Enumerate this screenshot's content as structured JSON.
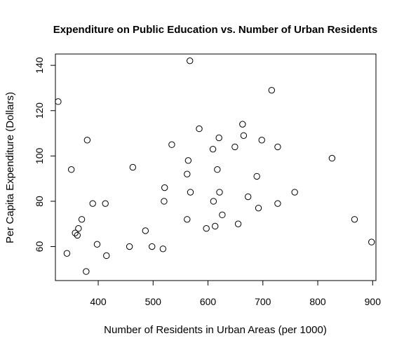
{
  "chart_data": {
    "type": "scatter",
    "title": "Expenditure on Public Education vs. Number of Urban Residents",
    "xlabel": "Number of Residents in Urban Areas (per 1000)",
    "ylabel": "Per Capita Expenditure (Dollars)",
    "xlim": [
      322,
      906
    ],
    "ylim": [
      45,
      145
    ],
    "xticks": [
      400,
      500,
      600,
      700,
      800,
      900
    ],
    "yticks": [
      60,
      80,
      100,
      120,
      140
    ],
    "grid": false,
    "legend": "none",
    "marker": "open-circle",
    "colors": {
      "point": "#000000",
      "axis": "#000000"
    },
    "points": [
      {
        "x": 327,
        "y": 124
      },
      {
        "x": 343,
        "y": 57
      },
      {
        "x": 351,
        "y": 94
      },
      {
        "x": 358,
        "y": 66
      },
      {
        "x": 362,
        "y": 65
      },
      {
        "x": 364,
        "y": 68
      },
      {
        "x": 370,
        "y": 72
      },
      {
        "x": 378,
        "y": 49
      },
      {
        "x": 380,
        "y": 107
      },
      {
        "x": 390,
        "y": 79
      },
      {
        "x": 398,
        "y": 61
      },
      {
        "x": 413,
        "y": 79
      },
      {
        "x": 415,
        "y": 56
      },
      {
        "x": 457,
        "y": 60
      },
      {
        "x": 463,
        "y": 95
      },
      {
        "x": 486,
        "y": 67
      },
      {
        "x": 498,
        "y": 60
      },
      {
        "x": 518,
        "y": 59
      },
      {
        "x": 520,
        "y": 80
      },
      {
        "x": 521,
        "y": 86
      },
      {
        "x": 534,
        "y": 105
      },
      {
        "x": 562,
        "y": 72
      },
      {
        "x": 562,
        "y": 92
      },
      {
        "x": 564,
        "y": 98
      },
      {
        "x": 567,
        "y": 142
      },
      {
        "x": 568,
        "y": 84
      },
      {
        "x": 584,
        "y": 112
      },
      {
        "x": 597,
        "y": 68
      },
      {
        "x": 609,
        "y": 103
      },
      {
        "x": 610,
        "y": 80
      },
      {
        "x": 613,
        "y": 69
      },
      {
        "x": 617,
        "y": 94
      },
      {
        "x": 620,
        "y": 108
      },
      {
        "x": 621,
        "y": 84
      },
      {
        "x": 626,
        "y": 74
      },
      {
        "x": 649,
        "y": 104
      },
      {
        "x": 655,
        "y": 70
      },
      {
        "x": 663,
        "y": 114
      },
      {
        "x": 665,
        "y": 109
      },
      {
        "x": 673,
        "y": 82
      },
      {
        "x": 689,
        "y": 91
      },
      {
        "x": 692,
        "y": 77
      },
      {
        "x": 698,
        "y": 107
      },
      {
        "x": 716,
        "y": 129
      },
      {
        "x": 727,
        "y": 104
      },
      {
        "x": 727,
        "y": 79
      },
      {
        "x": 758,
        "y": 84
      },
      {
        "x": 826,
        "y": 99
      },
      {
        "x": 867,
        "y": 72
      },
      {
        "x": 898,
        "y": 62
      }
    ]
  }
}
